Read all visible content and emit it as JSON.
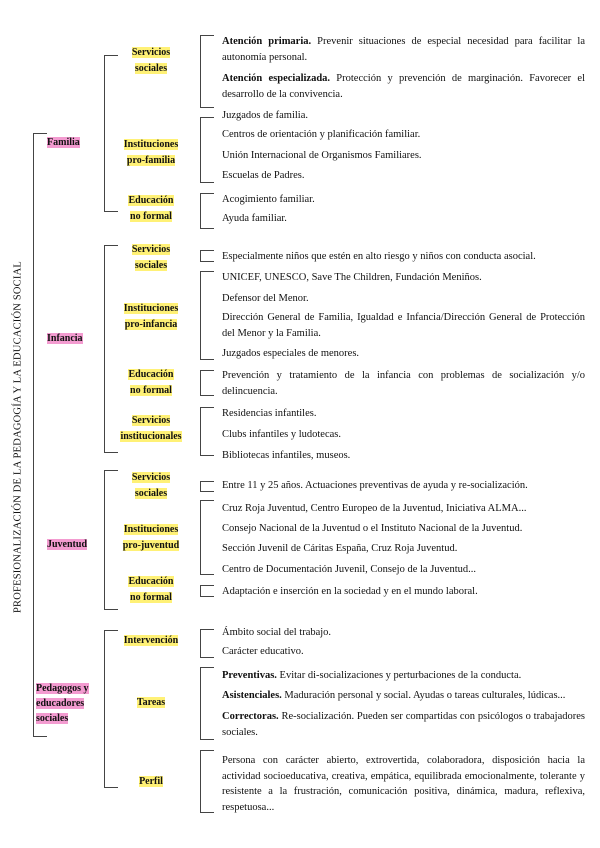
{
  "title": "PROFESIONALIZACIÓN DE LA PEDAGOGÍA Y LA EDUCACIÓN SOCIAL",
  "colors": {
    "category_highlight": "#f39bd0",
    "subcategory_highlight": "#fff176"
  },
  "groups": [
    {
      "label": "Familia",
      "subgroups": [
        {
          "label": [
            "Servicios",
            "sociales"
          ],
          "items": [
            {
              "bold": "Atención primaria.",
              "text": " Prevenir situaciones de especial necesidad para facilitar la autonomía personal."
            },
            {
              "bold": "Atención especializada.",
              "text": " Protección y prevención de marginación. Favorecer el desarrollo de la convivencia."
            }
          ]
        },
        {
          "label": [
            "Instituciones",
            "pro-familia"
          ],
          "items": [
            {
              "text": "Juzgados de familia."
            },
            {
              "text": "Centros de orientación y planificación familiar."
            },
            {
              "text": "Unión Internacional de Organismos Familiares."
            },
            {
              "text": "Escuelas de Padres."
            }
          ]
        },
        {
          "label": [
            "Educación",
            "no formal"
          ],
          "items": [
            {
              "text": "Acogimiento familiar."
            },
            {
              "text": "Ayuda familiar."
            }
          ]
        }
      ]
    },
    {
      "label": "Infancia",
      "subgroups": [
        {
          "label": [
            "Servicios",
            "sociales"
          ],
          "items": [
            {
              "text": "Especialmente niños que estén en alto riesgo y niños con conducta asocial."
            }
          ]
        },
        {
          "label": [
            "Instituciones",
            "pro-infancia"
          ],
          "items": [
            {
              "text": "UNICEF, UNESCO, Save The Children, Fundación Meniños."
            },
            {
              "text": "Defensor del Menor."
            },
            {
              "text": "Dirección General de Familia, Igualdad e Infancia/Dirección General de Protección del Menor y la Familia."
            },
            {
              "text": "Juzgados especiales de menores."
            }
          ]
        },
        {
          "label": [
            "Educación",
            "no formal"
          ],
          "items": [
            {
              "text": "Prevención y tratamiento de la infancia con problemas de socialización y/o delincuencia."
            }
          ]
        },
        {
          "label": [
            "Servicios",
            "institucionales"
          ],
          "items": [
            {
              "text": "Residencias infantiles."
            },
            {
              "text": "Clubs infantiles y ludotecas."
            },
            {
              "text": "Bibliotecas infantiles, museos."
            }
          ]
        }
      ]
    },
    {
      "label": "Juventud",
      "subgroups": [
        {
          "label": [
            "Servicios",
            "sociales"
          ],
          "items": [
            {
              "text": "Entre 11 y 25 años. Actuaciones preventivas de ayuda y re-socialización."
            }
          ]
        },
        {
          "label": [
            "Instituciones",
            "pro-juventud"
          ],
          "items": [
            {
              "text": "Cruz Roja Juventud, Centro Europeo de la Juventud, Iniciativa ALMA..."
            },
            {
              "text": "Consejo Nacional de la Juventud o el Instituto Nacional de la Juventud."
            },
            {
              "text": "Sección Juvenil de Cáritas España, Cruz Roja Juventud."
            },
            {
              "text": "Centro de Documentación Juvenil, Consejo de la Juventud..."
            }
          ]
        },
        {
          "label": [
            "Educación",
            "no formal"
          ],
          "items": [
            {
              "text": "Adaptación e inserción en la sociedad y en el mundo laboral."
            }
          ]
        }
      ]
    },
    {
      "label": "Pedagogos y educadores sociales",
      "subgroups": [
        {
          "label": [
            "Intervención"
          ],
          "items": [
            {
              "text": "Ámbito social del trabajo."
            },
            {
              "text": "Carácter educativo."
            }
          ]
        },
        {
          "label": [
            "Tareas"
          ],
          "items": [
            {
              "bold": "Preventivas.",
              "text": " Evitar di-socializaciones y perturbaciones de la conducta."
            },
            {
              "bold": "Asistenciales.",
              "text": " Maduración personal y social. Ayudas o tareas culturales, lúdicas..."
            },
            {
              "bold": "Correctoras.",
              "text": " Re-socialización. Pueden ser compartidas con psicólogos o trabajadores sociales."
            }
          ]
        },
        {
          "label": [
            "Perfil"
          ],
          "items": [
            {
              "text": "Persona con carácter abierto, extrovertida, colaboradora, disposición hacia la actividad socioeducativa, creativa, empática, equilibrada emocionalmente, tolerante y resistente a la frustración, comunicación positiva, dinámica, madura, reflexiva, respetuosa..."
            }
          ]
        }
      ]
    }
  ]
}
